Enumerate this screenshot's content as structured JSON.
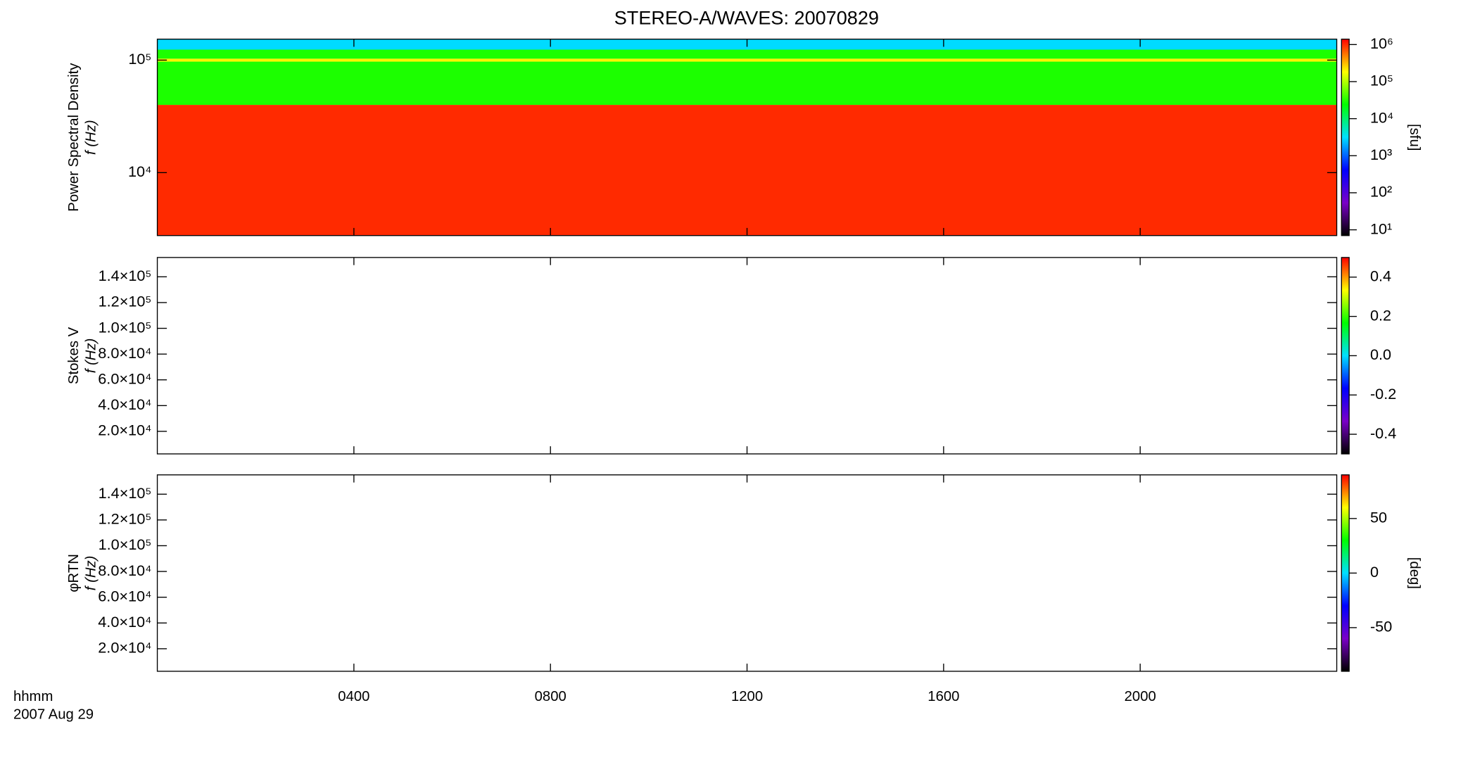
{
  "chart_data": [
    {
      "type": "heatmap",
      "title": "STEREO-A/WAVES: 20070829",
      "ylabel": "Power Spectral Density",
      "ylabel2": "f (Hz)",
      "ylog": true,
      "ylim": [
        2760,
        153600
      ],
      "yticks": [
        {
          "value": 10000,
          "label": "10⁴"
        },
        {
          "value": 100000,
          "label": "10⁵"
        }
      ],
      "xlim": [
        0,
        24
      ],
      "xticks": [
        {
          "value": 4,
          "label": "0400"
        },
        {
          "value": 8,
          "label": "0800"
        },
        {
          "value": 12,
          "label": "1200"
        },
        {
          "value": 16,
          "label": "1600"
        },
        {
          "value": 20,
          "label": "2000"
        }
      ],
      "ybins": [
        2760,
        40000,
        97000,
        103000,
        124000,
        153600
      ],
      "values": [
        1000000,
        30000,
        200000,
        30000,
        3000
      ],
      "zlog": true,
      "zlim": [
        7,
        1400000
      ],
      "zticks": [
        {
          "value": 10,
          "label": "10¹"
        },
        {
          "value": 100,
          "label": "10²"
        },
        {
          "value": 1000,
          "label": "10³"
        },
        {
          "value": 10000,
          "label": "10⁴"
        },
        {
          "value": 100000,
          "label": "10⁵"
        },
        {
          "value": 1000000,
          "label": "10⁶"
        }
      ],
      "zlabel": "[sfu]",
      "colormap": [
        "#000000",
        "#7a00c8",
        "#0000ff",
        "#00e0ff",
        "#00ff00",
        "#ffff00",
        "#ff0000"
      ]
    },
    {
      "type": "heatmap",
      "ylabel": "Stokes V",
      "ylabel2": "f (Hz)",
      "ylog": false,
      "ylim": [
        2500,
        155000
      ],
      "yticks": [
        {
          "value": 20000,
          "label": "2.0×10⁴"
        },
        {
          "value": 40000,
          "label": "4.0×10⁴"
        },
        {
          "value": 60000,
          "label": "6.0×10⁴"
        },
        {
          "value": 80000,
          "label": "8.0×10⁴"
        },
        {
          "value": 100000,
          "label": "1.0×10⁵"
        },
        {
          "value": 120000,
          "label": "1.2×10⁵"
        },
        {
          "value": 140000,
          "label": "1.4×10⁵"
        }
      ],
      "xlim": [
        0,
        24
      ],
      "xticks": [
        {
          "value": 4,
          "label": "0400"
        },
        {
          "value": 8,
          "label": "0800"
        },
        {
          "value": 12,
          "label": "1200"
        },
        {
          "value": 16,
          "label": "1600"
        },
        {
          "value": 20,
          "label": "2000"
        }
      ],
      "zlog": false,
      "zlim": [
        -0.5,
        0.5
      ],
      "zticks": [
        -0.4,
        -0.2,
        {
          "value": 0,
          "label": "0.0"
        },
        0.2,
        0.4
      ],
      "colormap": [
        "#000000",
        "#7a00c8",
        "#0000ff",
        "#00e0ff",
        "#00ff00",
        "#ffff00",
        "#ff0000"
      ]
    },
    {
      "type": "heatmap",
      "ylabel": "φRTN",
      "ylabel2": "f (Hz)",
      "ylog": false,
      "ylim": [
        2500,
        155000
      ],
      "yticks": [
        {
          "value": 20000,
          "label": "2.0×10⁴"
        },
        {
          "value": 40000,
          "label": "4.0×10⁴"
        },
        {
          "value": 60000,
          "label": "6.0×10⁴"
        },
        {
          "value": 80000,
          "label": "8.0×10⁴"
        },
        {
          "value": 100000,
          "label": "1.0×10⁵"
        },
        {
          "value": 120000,
          "label": "1.2×10⁵"
        },
        {
          "value": 140000,
          "label": "1.4×10⁵"
        }
      ],
      "xlim": [
        0,
        24
      ],
      "xticks": [
        {
          "value": 4,
          "label": "0400"
        },
        {
          "value": 8,
          "label": "0800"
        },
        {
          "value": 12,
          "label": "1200"
        },
        {
          "value": 16,
          "label": "1600"
        },
        {
          "value": 20,
          "label": "2000"
        }
      ],
      "xlabel": "hhmm",
      "xlabel2": "2007 Aug 29",
      "zlog": false,
      "zlim": [
        -90,
        90
      ],
      "zticks": [
        -50,
        0,
        50
      ],
      "zlabel": "[deg]",
      "colormap": [
        "#000000",
        "#7a00c8",
        "#0000ff",
        "#00e0ff",
        "#00ff00",
        "#ffff00",
        "#ff0000"
      ]
    }
  ]
}
